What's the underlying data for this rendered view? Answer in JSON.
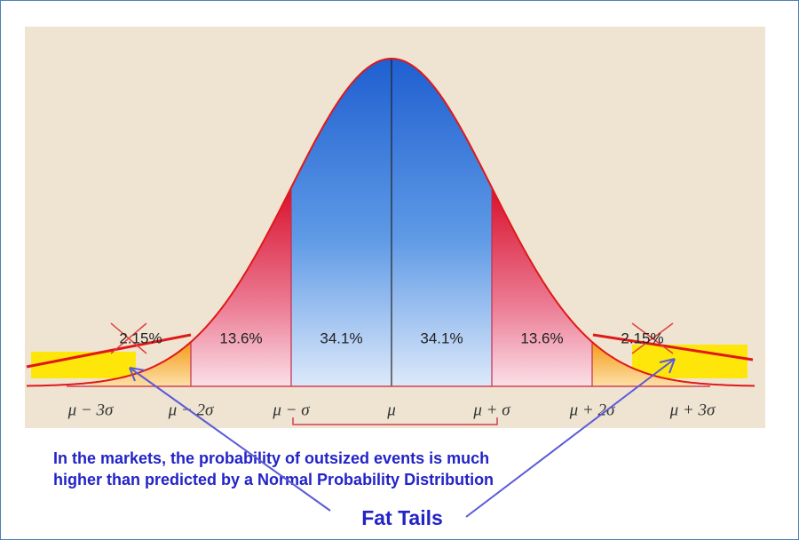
{
  "regions": [
    {
      "label": "2.15%"
    },
    {
      "label": "13.6%"
    },
    {
      "label": "34.1%"
    },
    {
      "label": "34.1%"
    },
    {
      "label": "13.6%"
    },
    {
      "label": "2.15%"
    }
  ],
  "axis_labels": [
    "μ − 3σ",
    "μ − 2σ",
    "μ − σ",
    "μ",
    "μ + σ",
    "μ + 2σ",
    "μ + 3σ"
  ],
  "caption": [
    "In the markets, the probability of outsized events is much",
    "higher than predicted by a Normal Probability Distribution"
  ],
  "callout": "Fat Tails"
}
